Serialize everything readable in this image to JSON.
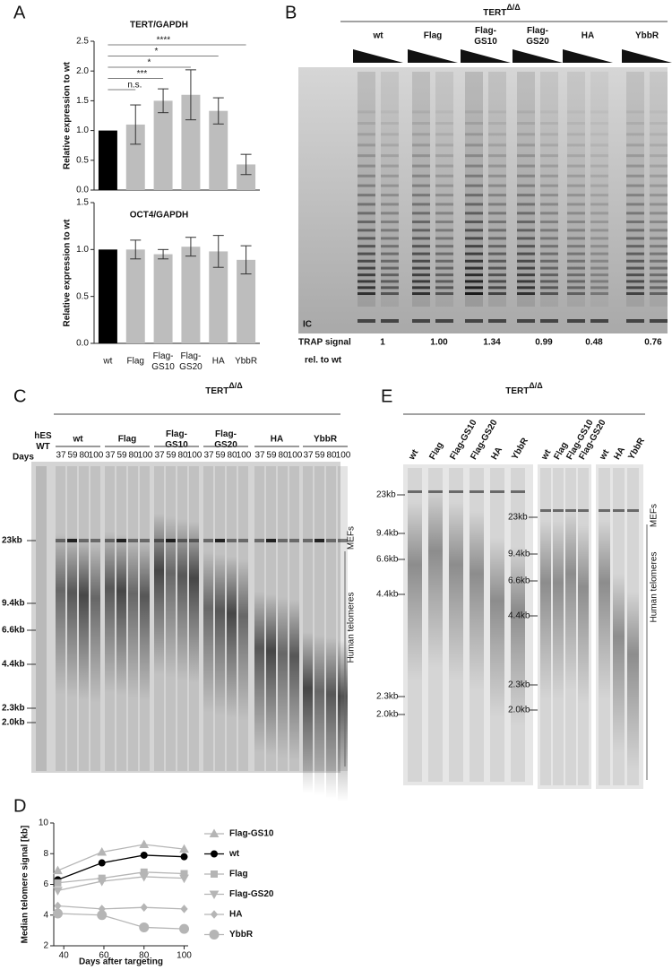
{
  "panel_labels": [
    "A",
    "B",
    "C",
    "D",
    "E"
  ],
  "chart_data": [
    {
      "type": "bar",
      "title": "TERT/GAPDH",
      "y_label": "Relative expression to wt",
      "values": [
        1.0,
        1.1,
        1.5,
        1.6,
        1.33,
        0.43
      ],
      "errors": [
        null,
        0.33,
        0.2,
        0.42,
        0.22,
        0.17
      ],
      "colors": [
        "#000000",
        "#bdbdbd",
        "#bdbdbd",
        "#bdbdbd",
        "#bdbdbd",
        "#bdbdbd"
      ],
      "ylim": [
        0,
        2.5
      ],
      "yticks": [
        {
          "value": 0,
          "label": "0.0"
        },
        {
          "value": 0.5,
          "label": "0.5"
        },
        {
          "value": 1,
          "label": "1.0"
        },
        {
          "value": 1.5,
          "label": "1.5"
        },
        {
          "value": 2,
          "label": "2.0"
        },
        {
          "value": 2.5,
          "label": "2.5"
        }
      ],
      "significance": [
        "n.s.",
        "***",
        "*",
        "*",
        "****"
      ]
    },
    {
      "type": "bar",
      "title": "OCT4/GAPDH",
      "y_label": "Relative  expression to wt",
      "categories": [
        "wt",
        "Flag",
        "Flag-\nGS10",
        "Flag-\nGS20",
        "HA",
        "YbbR"
      ],
      "values": [
        1.0,
        1.0,
        0.95,
        1.03,
        0.98,
        0.89
      ],
      "errors": [
        null,
        0.1,
        0.05,
        0.1,
        0.17,
        0.15
      ],
      "colors": [
        "#000000",
        "#bdbdbd",
        "#bdbdbd",
        "#bdbdbd",
        "#bdbdbd",
        "#bdbdbd"
      ],
      "ylim": [
        0,
        1.5
      ],
      "yticks": [
        {
          "value": 0,
          "label": "0.0"
        },
        {
          "value": 0.5,
          "label": "0.5"
        },
        {
          "value": 1,
          "label": "1.0"
        },
        {
          "value": 1.5,
          "label": "1.5"
        }
      ]
    },
    {
      "type": "line",
      "x_label": "Days after targeting",
      "y_label": "Median telomere signal [kb]",
      "x": [
        37,
        59,
        80,
        100
      ],
      "xlim": [
        35,
        102
      ],
      "xticks": [
        40,
        60,
        80,
        100
      ],
      "ylim": [
        2,
        10
      ],
      "yticks": [
        2,
        4,
        6,
        8,
        10
      ],
      "series": [
        {
          "name": "Flag-GS10",
          "color": "#b5b5b5",
          "marker": "triangle-up",
          "values": [
            6.9,
            8.1,
            8.6,
            8.3
          ]
        },
        {
          "name": "wt",
          "color": "#000000",
          "marker": "circle",
          "values": [
            6.3,
            7.4,
            7.9,
            7.8
          ]
        },
        {
          "name": "Flag",
          "color": "#b5b5b5",
          "marker": "square",
          "values": [
            6.1,
            6.4,
            6.8,
            6.7
          ]
        },
        {
          "name": "Flag-GS20",
          "color": "#b5b5b5",
          "marker": "triangle-down",
          "values": [
            5.6,
            6.2,
            6.5,
            6.4
          ]
        },
        {
          "name": "HA",
          "color": "#b5b5b5",
          "marker": "diamond",
          "values": [
            4.6,
            4.4,
            4.5,
            4.4
          ]
        },
        {
          "name": "YbbR",
          "color": "#b5b5b5",
          "marker": "big-circle",
          "values": [
            4.1,
            4.0,
            3.2,
            3.1
          ]
        }
      ]
    }
  ],
  "gel_B": {
    "header": {
      "text": "TERT",
      "superscript": "Δ/Δ"
    },
    "lanes": [
      "wt",
      "Flag",
      "Flag-\nGS10",
      "Flag-\nGS20",
      "HA",
      "YbbR"
    ],
    "ic_label": "IC",
    "trap_label": "TRAP signal",
    "trap_sublabel": "rel. to wt",
    "trap_values": [
      "1",
      "1.00",
      "1.34",
      "0.99",
      "0.48",
      "0.76"
    ]
  },
  "gel_C": {
    "header": {
      "text": "TERT",
      "superscript": "Δ/Δ"
    },
    "days_label": "Days",
    "control_lane": "hES\nWT",
    "groups": [
      {
        "name": "wt",
        "days": [
          "37",
          "59",
          "80",
          "100"
        ]
      },
      {
        "name": "Flag",
        "days": [
          "37",
          "59",
          "80",
          "100"
        ]
      },
      {
        "name": "Flag-\nGS10",
        "days": [
          "37",
          "59",
          "80",
          "100"
        ]
      },
      {
        "name": "Flag-\nGS20",
        "days": [
          "37",
          "59",
          "80",
          "100"
        ]
      },
      {
        "name": "HA",
        "days": [
          "37",
          "59",
          "80",
          "100"
        ]
      },
      {
        "name": "YbbR",
        "days": [
          "37",
          "59",
          "80",
          "100"
        ]
      }
    ],
    "markers": [
      "23kb",
      "9.4kb",
      "6.6kb",
      "4.4kb",
      "2.3kb",
      "2.0kb"
    ],
    "side_labels": [
      "MEFs",
      "Human telomeres"
    ]
  },
  "gel_E": {
    "header": {
      "text": "TERT",
      "superscript": "Δ/Δ"
    },
    "lanes_1": [
      "wt",
      "Flag",
      "Flag-GS10",
      "Flag-GS20",
      "HA",
      "YbbR"
    ],
    "lanes_2": [
      "wt",
      "Flag",
      "Flag-GS10",
      "Flag-GS20"
    ],
    "lanes_3": [
      "wt",
      "HA",
      "YbbR"
    ],
    "markers_1": [
      "23kb",
      "9.4kb",
      "6.6kb",
      "4.4kb",
      "2.3kb",
      "2.0kb"
    ],
    "markers_2": [
      "23kb",
      "9.4kb",
      "6.6kb",
      "4.4kb",
      "2.3kb",
      "2.0kb"
    ],
    "side_labels": [
      "MEFs",
      "Human telomeres"
    ]
  }
}
